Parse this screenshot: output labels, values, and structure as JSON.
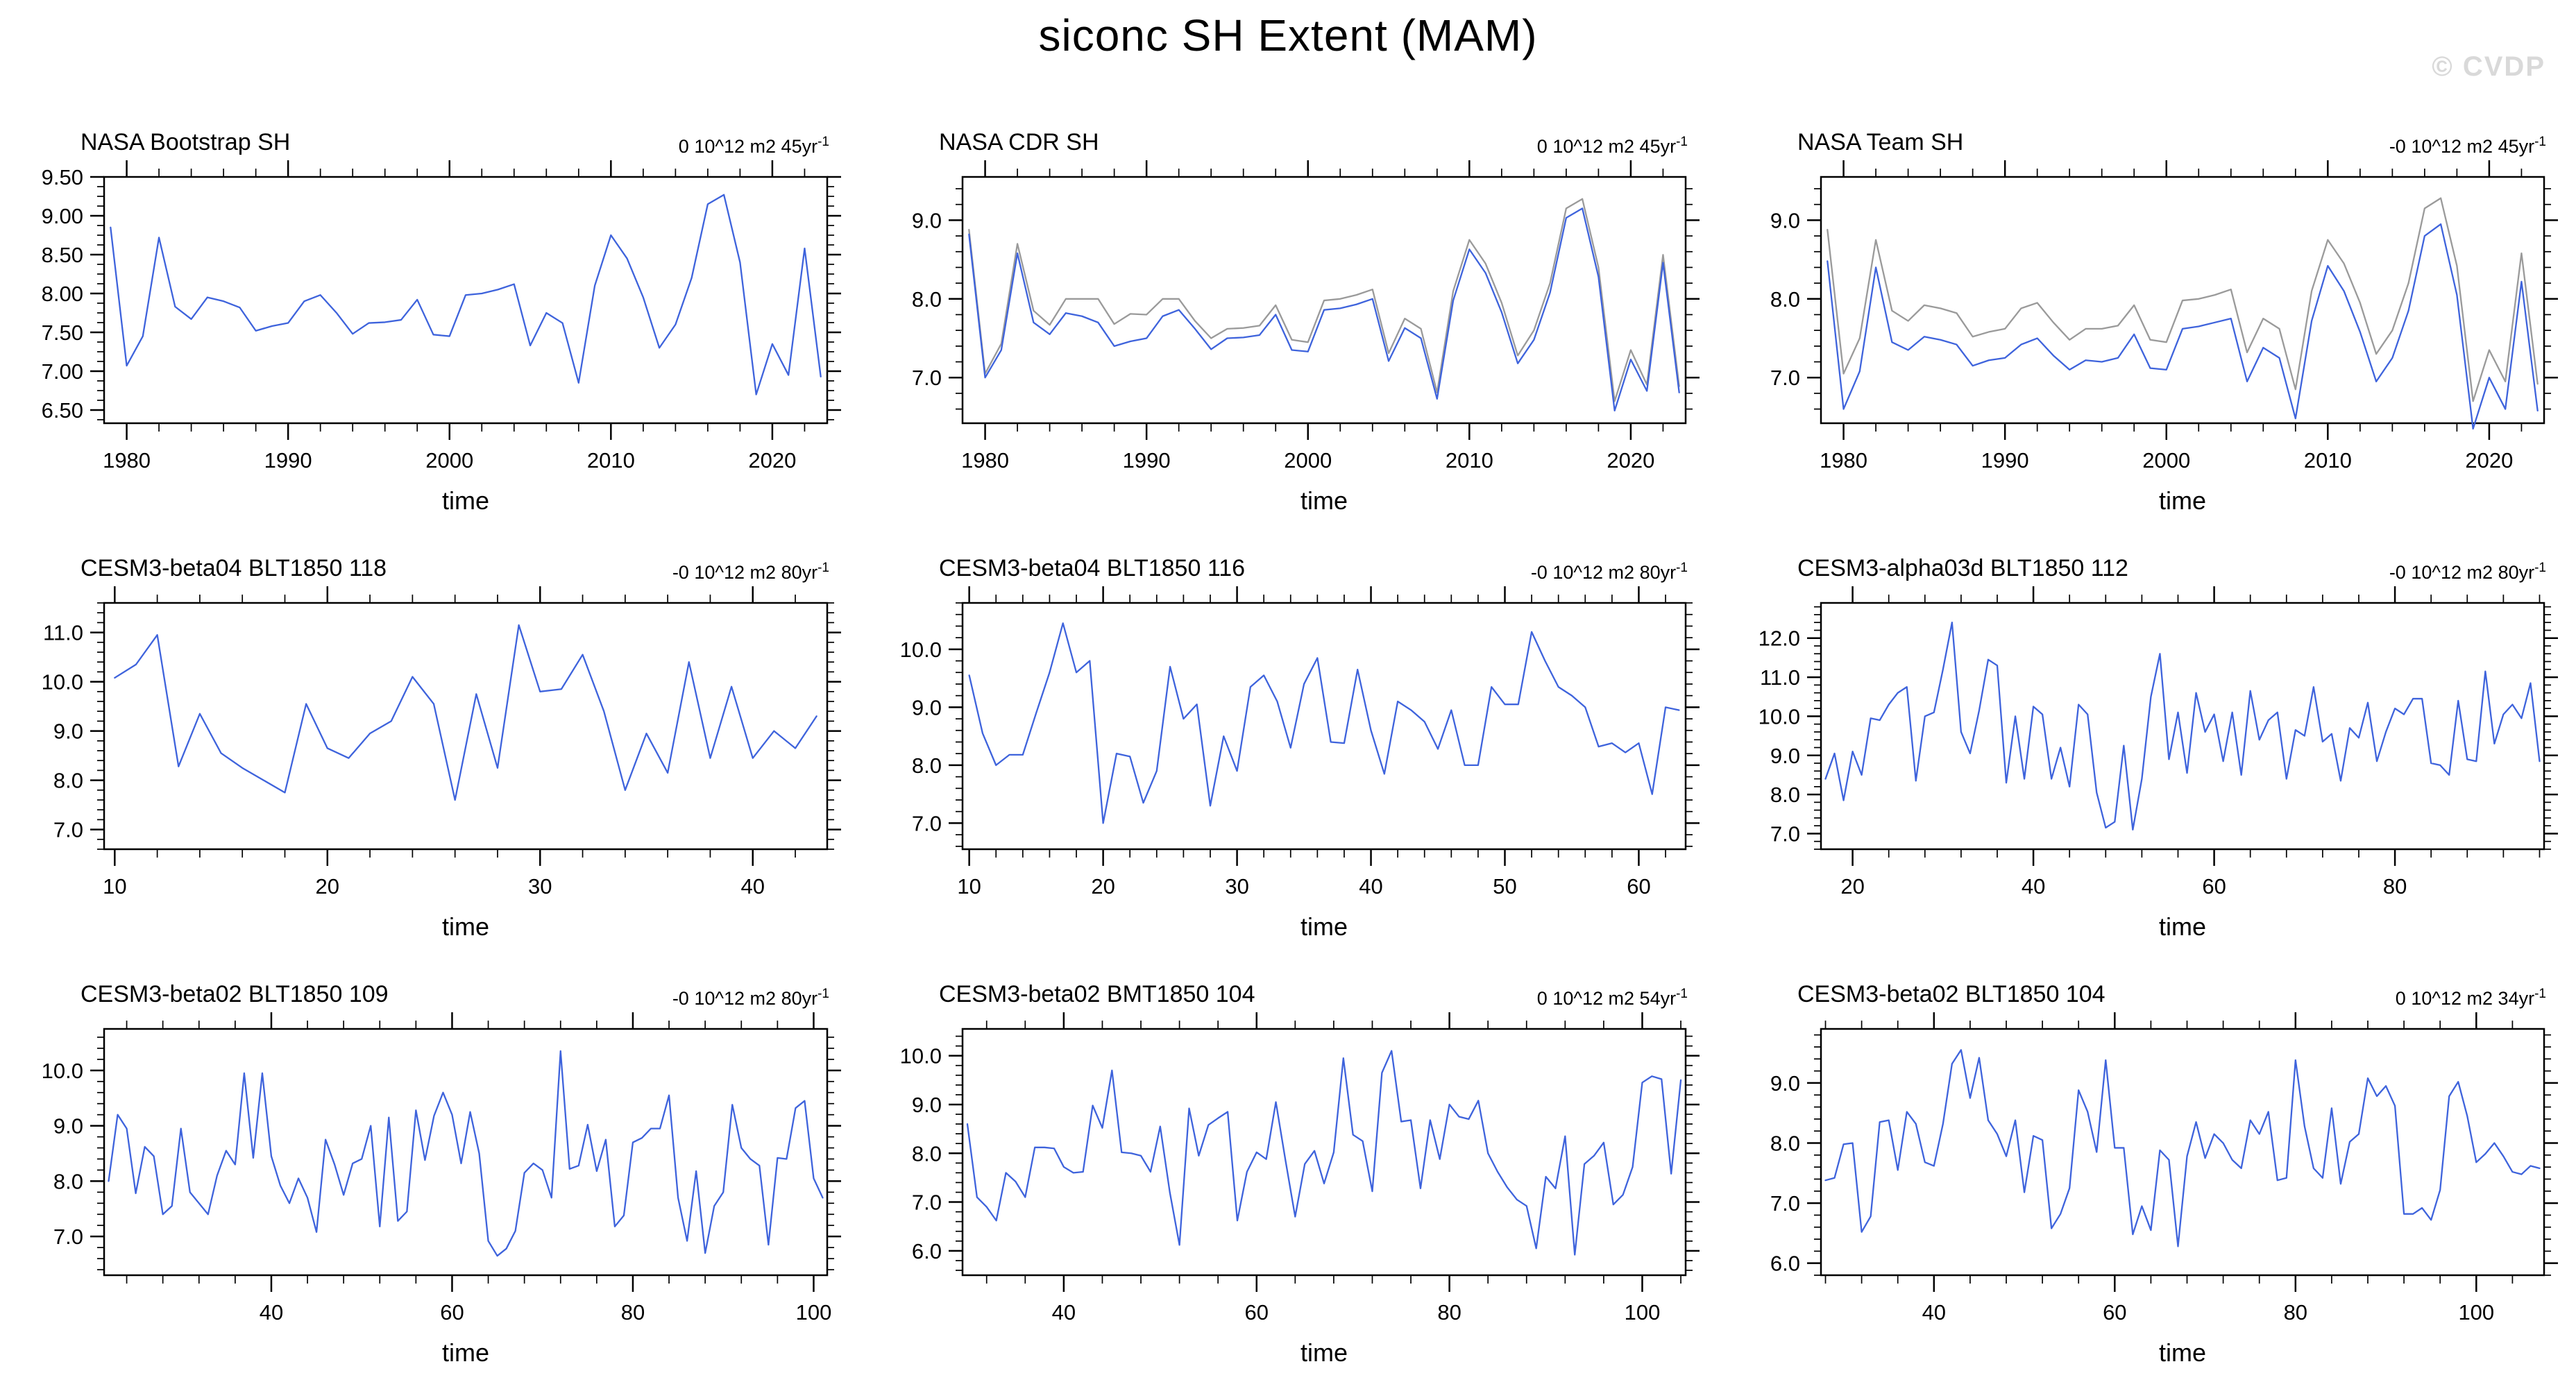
{
  "header": {
    "title": "siconc SH Extent (MAM)",
    "watermark": "© CVDP"
  },
  "colors": {
    "line_blue": "#3E63DC",
    "line_gray": "#9A9A9A",
    "frame": "#000000",
    "text": "#000000",
    "watermark": "#D9D9D9"
  },
  "chart_data": [
    {
      "type": "line",
      "title": "NASA Bootstrap SH",
      "units": "0 10^12 m2 45yr",
      "units_sup": "-1",
      "xlabel": "time",
      "x_range": [
        1978.6,
        2023.4
      ],
      "y_range": [
        6.33,
        9.5
      ],
      "x_ticks": [
        1980,
        1990,
        2000,
        2010,
        2020
      ],
      "x_tick_labels": [
        "1980",
        "1990",
        "2000",
        "2010",
        "2020"
      ],
      "x_minor_step": 2,
      "y_ticks": [
        6.5,
        7.0,
        7.5,
        8.0,
        8.5,
        9.0,
        9.5
      ],
      "y_tick_labels": [
        "6.50",
        "7.00",
        "7.50",
        "8.00",
        "8.50",
        "9.00",
        "9.50"
      ],
      "y_minor_step": 0.125,
      "x_start": 1979,
      "x_step": 1,
      "series": [
        {
          "name": "extent",
          "color": "#3E63DC",
          "values": [
            8.85,
            7.07,
            7.45,
            8.72,
            7.83,
            7.67,
            7.95,
            7.9,
            7.82,
            7.52,
            7.58,
            7.62,
            7.9,
            7.98,
            7.75,
            7.48,
            7.62,
            7.63,
            7.66,
            7.92,
            7.47,
            7.45,
            7.98,
            8.0,
            8.05,
            8.12,
            7.33,
            7.75,
            7.62,
            6.85,
            8.1,
            8.75,
            8.45,
            7.95,
            7.3,
            7.6,
            8.2,
            9.15,
            9.27,
            8.4,
            6.7,
            7.35,
            6.95,
            8.58,
            6.93
          ]
        }
      ]
    },
    {
      "type": "line",
      "title": "NASA CDR SH",
      "units": "0 10^12 m2 45yr",
      "units_sup": "-1",
      "xlabel": "time",
      "x_range": [
        1978.6,
        2023.4
      ],
      "y_range": [
        6.42,
        9.55
      ],
      "x_ticks": [
        1980,
        1990,
        2000,
        2010,
        2020
      ],
      "x_tick_labels": [
        "1980",
        "1990",
        "2000",
        "2010",
        "2020"
      ],
      "x_minor_step": 2,
      "y_ticks": [
        7.0,
        8.0,
        9.0
      ],
      "y_tick_labels": [
        "7.0",
        "8.0",
        "9.0"
      ],
      "y_minor_step": 0.2,
      "x_start": 1979,
      "x_step": 1,
      "series": [
        {
          "name": "obs-secondary",
          "color": "#9A9A9A",
          "values": [
            8.88,
            7.05,
            7.43,
            8.7,
            7.85,
            7.67,
            8.0,
            8.0,
            8.0,
            7.68,
            7.81,
            7.8,
            8.0,
            8.0,
            7.72,
            7.5,
            7.62,
            7.63,
            7.66,
            7.92,
            7.48,
            7.45,
            7.98,
            8.0,
            8.05,
            8.12,
            7.31,
            7.75,
            7.62,
            6.81,
            8.1,
            8.75,
            8.45,
            7.95,
            7.28,
            7.6,
            8.2,
            9.15,
            9.27,
            8.4,
            6.7,
            7.35,
            6.91,
            8.56,
            6.89
          ]
        },
        {
          "name": "obs-primary",
          "color": "#3E63DC",
          "values": [
            8.82,
            7.0,
            7.35,
            8.58,
            7.7,
            7.55,
            7.82,
            7.78,
            7.7,
            7.4,
            7.46,
            7.5,
            7.78,
            7.86,
            7.62,
            7.36,
            7.5,
            7.51,
            7.54,
            7.8,
            7.35,
            7.33,
            7.86,
            7.88,
            7.93,
            8.0,
            7.21,
            7.63,
            7.5,
            6.73,
            7.98,
            8.63,
            8.33,
            7.83,
            7.18,
            7.48,
            8.08,
            9.03,
            9.15,
            8.28,
            6.58,
            7.23,
            6.83,
            8.46,
            6.81
          ]
        }
      ]
    },
    {
      "type": "line",
      "title": "NASA Team SH",
      "units": "-0 10^12 m2 45yr",
      "units_sup": "-1",
      "xlabel": "time",
      "x_range": [
        1978.6,
        2023.4
      ],
      "y_range": [
        6.42,
        9.55
      ],
      "x_ticks": [
        1980,
        1990,
        2000,
        2010,
        2020
      ],
      "x_tick_labels": [
        "1980",
        "1990",
        "2000",
        "2010",
        "2020"
      ],
      "x_minor_step": 2,
      "y_ticks": [
        7.0,
        8.0,
        9.0
      ],
      "y_tick_labels": [
        "7.0",
        "8.0",
        "9.0"
      ],
      "y_minor_step": 0.2,
      "x_start": 1979,
      "x_step": 1,
      "series": [
        {
          "name": "obs-secondary",
          "color": "#9A9A9A",
          "values": [
            8.88,
            7.05,
            7.5,
            8.75,
            7.85,
            7.72,
            7.92,
            7.88,
            7.82,
            7.52,
            7.58,
            7.62,
            7.88,
            7.95,
            7.7,
            7.48,
            7.62,
            7.62,
            7.66,
            7.92,
            7.48,
            7.45,
            7.98,
            8.0,
            8.05,
            8.12,
            7.32,
            7.75,
            7.62,
            6.85,
            8.1,
            8.75,
            8.45,
            7.95,
            7.3,
            7.6,
            8.2,
            9.15,
            9.28,
            8.42,
            6.7,
            7.35,
            6.95,
            8.58,
            6.92
          ]
        },
        {
          "name": "obs-primary",
          "color": "#3E63DC",
          "values": [
            8.48,
            6.6,
            7.08,
            8.4,
            7.45,
            7.35,
            7.52,
            7.48,
            7.42,
            7.15,
            7.22,
            7.25,
            7.42,
            7.5,
            7.28,
            7.1,
            7.22,
            7.2,
            7.25,
            7.55,
            7.12,
            7.1,
            7.62,
            7.65,
            7.7,
            7.75,
            6.95,
            7.38,
            7.25,
            6.48,
            7.72,
            8.42,
            8.1,
            7.58,
            6.95,
            7.25,
            7.85,
            8.8,
            8.95,
            8.05,
            6.35,
            7.0,
            6.6,
            8.22,
            6.58
          ]
        }
      ]
    },
    {
      "type": "line",
      "title": "CESM3-beta04 BLT1850 118",
      "units": "-0 10^12 m2 80yr",
      "units_sup": "-1",
      "xlabel": "time",
      "x_range": [
        9.5,
        43.5
      ],
      "y_range": [
        6.6,
        11.6
      ],
      "x_ticks": [
        10,
        20,
        30,
        40
      ],
      "x_tick_labels": [
        "10",
        "20",
        "30",
        "40"
      ],
      "x_minor_step": 2,
      "y_ticks": [
        7.0,
        8.0,
        9.0,
        10.0,
        11.0
      ],
      "y_tick_labels": [
        "7.0",
        "8.0",
        "9.0",
        "10.0",
        "11.0"
      ],
      "y_minor_step": 0.2,
      "x_start": 10,
      "x_step": 1,
      "series": [
        {
          "name": "extent",
          "color": "#3E63DC",
          "values": [
            10.08,
            10.35,
            10.95,
            8.28,
            9.35,
            8.55,
            8.25,
            8.0,
            7.75,
            9.55,
            8.65,
            8.45,
            8.95,
            9.2,
            10.1,
            9.55,
            7.6,
            9.75,
            8.25,
            11.15,
            9.8,
            9.85,
            10.55,
            9.4,
            7.8,
            8.95,
            8.15,
            10.4,
            8.45,
            9.9,
            8.45,
            9.0,
            8.65,
            9.3
          ]
        }
      ]
    },
    {
      "type": "line",
      "title": "CESM3-beta04 BLT1850 116",
      "units": "-0 10^12 m2 80yr",
      "units_sup": "-1",
      "xlabel": "time",
      "x_range": [
        9.5,
        63.5
      ],
      "y_range": [
        6.55,
        10.8
      ],
      "x_ticks": [
        10,
        20,
        30,
        40,
        50,
        60
      ],
      "x_tick_labels": [
        "10",
        "20",
        "30",
        "40",
        "50",
        "60"
      ],
      "x_minor_step": 2,
      "y_ticks": [
        7.0,
        8.0,
        9.0,
        10.0
      ],
      "y_tick_labels": [
        "7.0",
        "8.0",
        "9.0",
        "10.0"
      ],
      "y_minor_step": 0.2,
      "x_start": 10,
      "x_step": 1,
      "series": [
        {
          "name": "extent",
          "color": "#3E63DC",
          "values": [
            9.55,
            8.55,
            8.0,
            8.18,
            8.18,
            8.9,
            9.6,
            10.45,
            9.6,
            9.8,
            7.0,
            8.2,
            8.15,
            7.35,
            7.9,
            9.7,
            8.8,
            9.05,
            7.3,
            8.5,
            7.9,
            9.35,
            9.55,
            9.1,
            8.3,
            9.4,
            9.85,
            8.4,
            8.38,
            9.65,
            8.6,
            7.85,
            9.1,
            8.95,
            8.75,
            8.28,
            8.95,
            8.0,
            8.0,
            9.35,
            9.05,
            9.05,
            10.3,
            9.8,
            9.35,
            9.2,
            9.0,
            8.32,
            8.38,
            8.22,
            8.38,
            7.5,
            9.0,
            8.95
          ]
        }
      ]
    },
    {
      "type": "line",
      "title": "CESM3-alpha03d BLT1850 112",
      "units": "-0 10^12 m2 80yr",
      "units_sup": "-1",
      "xlabel": "time",
      "x_range": [
        16.5,
        96.5
      ],
      "y_range": [
        6.6,
        12.9
      ],
      "x_ticks": [
        20,
        40,
        60,
        80
      ],
      "x_tick_labels": [
        "20",
        "40",
        "60",
        "80"
      ],
      "x_minor_step": 4,
      "y_ticks": [
        7.0,
        8.0,
        9.0,
        10.0,
        11.0,
        12.0
      ],
      "y_tick_labels": [
        "7.0",
        "8.0",
        "9.0",
        "10.0",
        "11.0",
        "12.0"
      ],
      "y_minor_step": 0.2,
      "x_start": 17,
      "x_step": 1,
      "series": [
        {
          "name": "extent",
          "color": "#3E63DC",
          "values": [
            8.4,
            9.05,
            7.85,
            9.1,
            8.5,
            9.95,
            9.9,
            10.3,
            10.6,
            10.75,
            8.35,
            10.0,
            10.1,
            11.2,
            12.4,
            9.6,
            9.05,
            10.15,
            11.45,
            11.3,
            8.3,
            10.0,
            8.4,
            10.25,
            10.05,
            8.4,
            9.2,
            8.2,
            10.3,
            10.05,
            8.05,
            7.15,
            7.3,
            9.25,
            7.1,
            8.4,
            10.5,
            11.6,
            8.9,
            10.1,
            8.55,
            10.6,
            9.6,
            10.05,
            8.85,
            10.1,
            8.5,
            10.65,
            9.4,
            9.9,
            10.1,
            8.4,
            9.65,
            9.5,
            10.75,
            9.35,
            9.55,
            8.35,
            9.7,
            9.45,
            10.35,
            8.85,
            9.6,
            10.2,
            10.05,
            10.45,
            10.45,
            8.8,
            8.75,
            8.5,
            10.4,
            8.9,
            8.85,
            11.15,
            9.3,
            10.05,
            10.3,
            9.95,
            10.85,
            8.85
          ]
        }
      ]
    },
    {
      "type": "line",
      "title": "CESM3-beta02 BLT1850 109",
      "units": "-0 10^12 m2 80yr",
      "units_sup": "-1",
      "xlabel": "time",
      "x_range": [
        21.5,
        101.5
      ],
      "y_range": [
        6.3,
        10.75
      ],
      "x_ticks": [
        40,
        60,
        80,
        100
      ],
      "x_tick_labels": [
        "40",
        "60",
        "80",
        "100"
      ],
      "x_minor_step": 4,
      "y_ticks": [
        7.0,
        8.0,
        9.0,
        10.0
      ],
      "y_tick_labels": [
        "7.0",
        "8.0",
        "9.0",
        "10.0"
      ],
      "y_minor_step": 0.2,
      "x_start": 22,
      "x_step": 1,
      "series": [
        {
          "name": "extent",
          "color": "#3E63DC",
          "values": [
            8.0,
            9.2,
            8.95,
            7.78,
            8.62,
            8.45,
            7.4,
            7.55,
            8.95,
            7.8,
            7.6,
            7.4,
            8.1,
            8.55,
            8.3,
            9.95,
            8.42,
            9.95,
            8.45,
            7.92,
            7.6,
            8.05,
            7.7,
            7.08,
            8.75,
            8.3,
            7.75,
            8.32,
            8.4,
            9.0,
            7.18,
            9.15,
            7.28,
            7.45,
            9.28,
            8.38,
            9.18,
            9.6,
            9.2,
            8.32,
            9.25,
            8.5,
            6.92,
            6.65,
            6.78,
            7.1,
            8.15,
            8.32,
            8.2,
            7.7,
            10.35,
            8.22,
            8.28,
            9.02,
            8.18,
            8.75,
            7.18,
            7.38,
            8.7,
            8.78,
            8.95,
            8.95,
            9.55,
            7.7,
            6.92,
            8.18,
            6.7,
            7.55,
            7.8,
            9.38,
            8.6,
            8.4,
            8.28,
            6.85,
            8.42,
            8.4,
            9.32,
            9.45,
            8.05,
            7.7
          ]
        }
      ]
    },
    {
      "type": "line",
      "title": "CESM3-beta02 BMT1850 104",
      "units": "0 10^12 m2 54yr",
      "units_sup": "-1",
      "xlabel": "time",
      "x_range": [
        29.5,
        104.5
      ],
      "y_range": [
        5.5,
        10.55
      ],
      "x_ticks": [
        40,
        60,
        80,
        100
      ],
      "x_tick_labels": [
        "40",
        "60",
        "80",
        "100"
      ],
      "x_minor_step": 4,
      "y_ticks": [
        6.0,
        7.0,
        8.0,
        9.0,
        10.0
      ],
      "y_tick_labels": [
        "6.0",
        "7.0",
        "8.0",
        "9.0",
        "10.0"
      ],
      "y_minor_step": 0.2,
      "x_start": 30,
      "x_step": 1,
      "series": [
        {
          "name": "extent",
          "color": "#3E63DC",
          "values": [
            8.6,
            7.1,
            6.9,
            6.62,
            7.6,
            7.42,
            7.1,
            8.12,
            8.12,
            8.1,
            7.72,
            7.6,
            7.62,
            8.98,
            8.52,
            9.7,
            8.02,
            8.0,
            7.95,
            7.62,
            8.55,
            7.2,
            6.12,
            8.92,
            7.95,
            8.58,
            8.72,
            8.85,
            6.62,
            7.62,
            8.02,
            7.88,
            9.05,
            7.85,
            6.7,
            7.78,
            8.05,
            7.38,
            8.02,
            9.95,
            8.38,
            8.25,
            7.22,
            9.65,
            10.1,
            8.65,
            8.68,
            7.28,
            8.68,
            7.88,
            9.0,
            8.75,
            8.7,
            9.08,
            8.0,
            7.62,
            7.3,
            7.05,
            6.92,
            6.05,
            7.52,
            7.28,
            8.35,
            5.92,
            7.78,
            7.95,
            8.22,
            6.95,
            7.15,
            7.72,
            9.45,
            9.58,
            9.52,
            7.58,
            9.5
          ]
        }
      ]
    },
    {
      "type": "line",
      "title": "CESM3-beta02 BLT1850 104",
      "units": "0 10^12 m2 34yr",
      "units_sup": "-1",
      "xlabel": "time",
      "x_range": [
        27.5,
        107.5
      ],
      "y_range": [
        5.8,
        9.9
      ],
      "x_ticks": [
        40,
        60,
        80,
        100
      ],
      "x_tick_labels": [
        "40",
        "60",
        "80",
        "100"
      ],
      "x_minor_step": 4,
      "y_ticks": [
        6.0,
        7.0,
        8.0,
        9.0
      ],
      "y_tick_labels": [
        "6.0",
        "7.0",
        "8.0",
        "9.0"
      ],
      "y_minor_step": 0.2,
      "x_start": 28,
      "x_step": 1,
      "series": [
        {
          "name": "extent",
          "color": "#3E63DC",
          "values": [
            7.38,
            7.42,
            7.98,
            8.0,
            6.52,
            6.78,
            8.35,
            8.38,
            7.55,
            8.52,
            8.32,
            7.68,
            7.62,
            8.32,
            9.32,
            9.55,
            8.75,
            9.42,
            8.38,
            8.15,
            7.78,
            8.38,
            7.18,
            8.12,
            8.05,
            6.58,
            6.82,
            7.25,
            8.88,
            8.52,
            7.85,
            9.38,
            7.92,
            7.92,
            6.48,
            6.95,
            6.55,
            7.88,
            7.72,
            6.28,
            7.78,
            8.35,
            7.75,
            8.15,
            8.0,
            7.72,
            7.58,
            8.38,
            8.15,
            8.52,
            7.38,
            7.42,
            9.38,
            8.28,
            7.58,
            7.42,
            8.58,
            7.32,
            8.02,
            8.15,
            9.08,
            8.78,
            8.95,
            8.62,
            6.82,
            6.82,
            6.92,
            6.72,
            7.22,
            8.78,
            9.02,
            8.45,
            7.68,
            7.82,
            8.0,
            7.78,
            7.52,
            7.48,
            7.62,
            7.58
          ]
        }
      ]
    }
  ]
}
